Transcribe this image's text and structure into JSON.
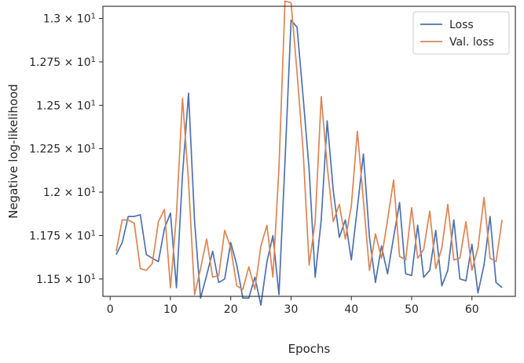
{
  "chart_data": {
    "type": "line",
    "xlabel": "Epochs",
    "ylabel": "Negative log-likelihood",
    "xlim": [
      -1.2,
      67.2
    ],
    "ylim": [
      11.4,
      13.07
    ],
    "x_ticks": [
      {
        "value": 0,
        "label": "0"
      },
      {
        "value": 10,
        "label": "10"
      },
      {
        "value": 20,
        "label": "20"
      },
      {
        "value": 30,
        "label": "30"
      },
      {
        "value": 40,
        "label": "40"
      },
      {
        "value": 50,
        "label": "50"
      },
      {
        "value": 60,
        "label": "60"
      }
    ],
    "y_ticks": [
      {
        "value": 11.5,
        "mant": "1.15",
        "times": " × 10",
        "exp": "1"
      },
      {
        "value": 11.75,
        "mant": "1.175",
        "times": " × 10",
        "exp": "1"
      },
      {
        "value": 12.0,
        "mant": "1.2",
        "times": " × 10",
        "exp": "1"
      },
      {
        "value": 12.25,
        "mant": "1.225",
        "times": " × 10",
        "exp": "1"
      },
      {
        "value": 12.5,
        "mant": "1.25",
        "times": " × 10",
        "exp": "1"
      },
      {
        "value": 12.75,
        "mant": "1.275",
        "times": " × 10",
        "exp": "1"
      },
      {
        "value": 13.0,
        "mant": "1.3",
        "times": " × 10",
        "exp": "1"
      }
    ],
    "legend_position": "top-right",
    "grid": false,
    "series": [
      {
        "name": "Loss",
        "color": "#4c72b0",
        "x": [
          1,
          2,
          3,
          4,
          5,
          6,
          7,
          8,
          9,
          10,
          11,
          12,
          13,
          14,
          15,
          16,
          17,
          18,
          19,
          20,
          21,
          22,
          23,
          24,
          25,
          26,
          27,
          28,
          29,
          30,
          31,
          32,
          33,
          34,
          35,
          36,
          37,
          38,
          39,
          40,
          41,
          42,
          43,
          44,
          45,
          46,
          47,
          48,
          49,
          50,
          51,
          52,
          53,
          54,
          55,
          56,
          57,
          58,
          59,
          60,
          61,
          62,
          63,
          64,
          65
        ],
        "values": [
          11.64,
          11.71,
          11.86,
          11.86,
          11.87,
          11.64,
          11.62,
          11.6,
          11.79,
          11.88,
          11.45,
          12.1,
          12.57,
          11.83,
          11.39,
          11.52,
          11.66,
          11.48,
          11.5,
          11.71,
          11.58,
          11.39,
          11.39,
          11.51,
          11.35,
          11.6,
          11.75,
          11.41,
          12.18,
          12.99,
          12.95,
          12.55,
          12.13,
          11.51,
          11.84,
          12.41,
          12.01,
          11.74,
          11.84,
          11.61,
          11.91,
          12.22,
          11.74,
          11.48,
          11.69,
          11.53,
          11.74,
          11.94,
          11.53,
          11.52,
          11.81,
          11.51,
          11.55,
          11.78,
          11.46,
          11.55,
          11.84,
          11.5,
          11.49,
          11.7,
          11.42,
          11.58,
          11.86,
          11.48,
          11.45
        ]
      },
      {
        "name": "Val. loss",
        "color": "#dd8452",
        "x": [
          1,
          2,
          3,
          4,
          5,
          6,
          7,
          8,
          9,
          10,
          11,
          12,
          13,
          14,
          15,
          16,
          17,
          18,
          19,
          20,
          21,
          22,
          23,
          24,
          25,
          26,
          27,
          28,
          29,
          30,
          31,
          32,
          33,
          34,
          35,
          36,
          37,
          38,
          39,
          40,
          41,
          42,
          43,
          44,
          45,
          46,
          47,
          48,
          49,
          50,
          51,
          52,
          53,
          54,
          55,
          56,
          57,
          58,
          59,
          60,
          61,
          62,
          63,
          64,
          65
        ],
        "values": [
          11.66,
          11.84,
          11.84,
          11.82,
          11.56,
          11.55,
          11.59,
          11.83,
          11.9,
          11.45,
          11.87,
          12.54,
          12.06,
          11.41,
          11.56,
          11.73,
          11.51,
          11.52,
          11.78,
          11.68,
          11.46,
          11.44,
          11.57,
          11.44,
          11.69,
          11.81,
          11.51,
          12.14,
          13.1,
          13.09,
          12.69,
          12.24,
          11.58,
          11.83,
          12.55,
          12.15,
          11.83,
          11.93,
          11.73,
          11.92,
          12.35,
          11.95,
          11.55,
          11.76,
          11.62,
          11.84,
          12.07,
          11.63,
          11.61,
          11.91,
          11.62,
          11.67,
          11.89,
          11.56,
          11.68,
          11.93,
          11.61,
          11.62,
          11.83,
          11.55,
          11.68,
          11.97,
          11.62,
          11.6,
          11.84
        ]
      }
    ]
  }
}
